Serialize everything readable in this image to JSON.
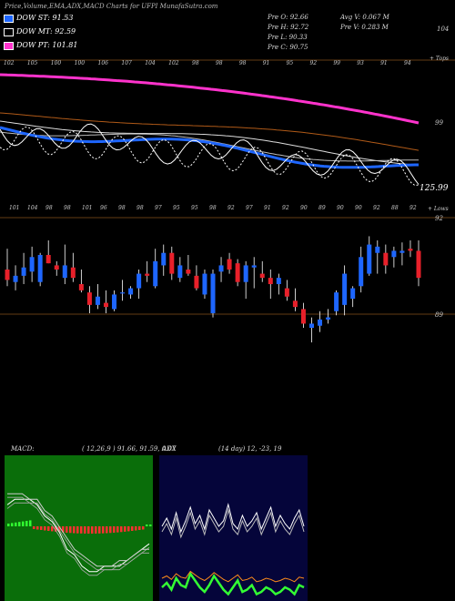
{
  "header": {
    "title": "Price,Volume,EMA,ADX,MACD Charts for UFPI MunafaSutra.com"
  },
  "legend": [
    {
      "label": "DOW ST: 91.53",
      "color": "#1e66ff"
    },
    {
      "label": "DOW MT: 92.59",
      "color": "#ffffff"
    },
    {
      "label": "DOW PT: 101.81",
      "color": "#ff33cc"
    }
  ],
  "ohlc": {
    "open": "Pre   O: 92.66",
    "high": "Pre   H: 92.72",
    "low": "Pre   L: 90.33",
    "close": "Pre   C: 90.75",
    "avg_vol": "Avg V: 0.067 M",
    "pre_vol": "Pre   V: 0.283 M"
  },
  "price_panel": {
    "right_labels": {
      "top": "104",
      "mid": "99",
      "bottom_price": "125.99",
      "tops": "+ Tops",
      "lows": "+ Lows",
      "level_92": "92",
      "level_89": "89"
    },
    "top_numbers": [
      "102",
      "105",
      "100",
      "100",
      "106",
      "107",
      "104",
      "102",
      "98",
      "98",
      "98",
      "91",
      "95",
      "92",
      "99",
      "93",
      "91",
      "94"
    ],
    "low_numbers": [
      "101",
      "104",
      "98",
      "98",
      "101",
      "96",
      "98",
      "98",
      "97",
      "95",
      "95",
      "98",
      "92",
      "97",
      "91",
      "92",
      "90",
      "89",
      "90",
      "90",
      "92",
      "88",
      "92"
    ]
  },
  "macd": {
    "label": "MACD:",
    "params": "( 12,26,9 ) 91.66,  91.59,  0.07"
  },
  "adx": {
    "label": "ADX",
    "params": "(14  day) 12,  -23,  19"
  },
  "colors": {
    "up": "#1e66ff",
    "down": "#e8202a",
    "ema_pt": "#ff33cc",
    "ema_brown": "#b05a18",
    "macd_bg": "#0a6e0a",
    "adx_bg": "#05053a"
  },
  "chart_data": [
    {
      "type": "candlestick",
      "title": "UFPI",
      "ylim": [
        87,
        94
      ],
      "candles": [
        {
          "o": 91.2,
          "h": 92.2,
          "l": 90.4,
          "c": 90.7
        },
        {
          "o": 90.6,
          "h": 91.4,
          "l": 90.2,
          "c": 90.9
        },
        {
          "o": 90.9,
          "h": 92.0,
          "l": 90.5,
          "c": 91.3
        },
        {
          "o": 91.1,
          "h": 92.3,
          "l": 90.6,
          "c": 91.8
        },
        {
          "o": 90.6,
          "h": 92.0,
          "l": 90.4,
          "c": 91.9
        },
        {
          "o": 91.9,
          "h": 92.6,
          "l": 91.5,
          "c": 91.5
        },
        {
          "o": 91.4,
          "h": 91.6,
          "l": 90.9,
          "c": 91.2
        },
        {
          "o": 90.8,
          "h": 92.4,
          "l": 90.5,
          "c": 91.4
        },
        {
          "o": 91.3,
          "h": 92.0,
          "l": 90.6,
          "c": 90.8
        },
        {
          "o": 90.5,
          "h": 91.2,
          "l": 90.1,
          "c": 90.2
        },
        {
          "o": 90.1,
          "h": 90.4,
          "l": 89.1,
          "c": 89.5
        },
        {
          "o": 89.5,
          "h": 90.5,
          "l": 89.3,
          "c": 89.9
        },
        {
          "o": 89.6,
          "h": 90.2,
          "l": 89.1,
          "c": 89.4
        },
        {
          "o": 89.3,
          "h": 90.2,
          "l": 89.2,
          "c": 90.0
        },
        {
          "o": 90.1,
          "h": 90.7,
          "l": 89.7,
          "c": 90.1
        },
        {
          "o": 90.0,
          "h": 90.4,
          "l": 89.8,
          "c": 90.3
        },
        {
          "o": 90.3,
          "h": 91.2,
          "l": 89.8,
          "c": 91.0
        },
        {
          "o": 91.0,
          "h": 91.6,
          "l": 90.6,
          "c": 90.9
        },
        {
          "o": 90.4,
          "h": 92.2,
          "l": 90.3,
          "c": 91.6
        },
        {
          "o": 91.4,
          "h": 92.4,
          "l": 90.9,
          "c": 92.0
        },
        {
          "o": 92.0,
          "h": 92.3,
          "l": 90.7,
          "c": 91.0
        },
        {
          "o": 90.8,
          "h": 91.8,
          "l": 90.6,
          "c": 91.4
        },
        {
          "o": 91.2,
          "h": 91.9,
          "l": 90.9,
          "c": 91.0
        },
        {
          "o": 90.9,
          "h": 91.4,
          "l": 90.2,
          "c": 90.3
        },
        {
          "o": 90.0,
          "h": 91.2,
          "l": 89.8,
          "c": 91.0
        },
        {
          "o": 89.1,
          "h": 91.2,
          "l": 88.9,
          "c": 91.0
        },
        {
          "o": 91.1,
          "h": 91.8,
          "l": 90.6,
          "c": 91.4
        },
        {
          "o": 91.7,
          "h": 92.0,
          "l": 91.0,
          "c": 91.2
        },
        {
          "o": 91.5,
          "h": 91.7,
          "l": 90.4,
          "c": 90.6
        },
        {
          "o": 90.6,
          "h": 91.6,
          "l": 89.8,
          "c": 91.4
        },
        {
          "o": 91.3,
          "h": 91.8,
          "l": 90.3,
          "c": 91.4
        },
        {
          "o": 91.0,
          "h": 91.6,
          "l": 90.6,
          "c": 90.8
        },
        {
          "o": 90.8,
          "h": 91.2,
          "l": 89.8,
          "c": 90.5
        },
        {
          "o": 90.5,
          "h": 91.0,
          "l": 90.0,
          "c": 90.8
        },
        {
          "o": 90.3,
          "h": 90.7,
          "l": 89.7,
          "c": 89.9
        },
        {
          "o": 89.7,
          "h": 90.3,
          "l": 89.2,
          "c": 89.4
        },
        {
          "o": 89.3,
          "h": 89.6,
          "l": 88.4,
          "c": 88.6
        },
        {
          "o": 88.4,
          "h": 88.9,
          "l": 87.7,
          "c": 88.6
        },
        {
          "o": 88.5,
          "h": 89.2,
          "l": 88.2,
          "c": 88.8
        },
        {
          "o": 88.8,
          "h": 89.3,
          "l": 88.6,
          "c": 88.9
        },
        {
          "o": 89.2,
          "h": 90.2,
          "l": 89.0,
          "c": 90.1
        },
        {
          "o": 89.5,
          "h": 91.4,
          "l": 89.0,
          "c": 91.0
        },
        {
          "o": 89.8,
          "h": 90.4,
          "l": 89.4,
          "c": 90.3
        },
        {
          "o": 90.4,
          "h": 92.3,
          "l": 90.1,
          "c": 91.8
        },
        {
          "o": 91.0,
          "h": 92.8,
          "l": 90.9,
          "c": 92.4
        },
        {
          "o": 92.0,
          "h": 92.6,
          "l": 91.0,
          "c": 92.3
        },
        {
          "o": 92.0,
          "h": 92.4,
          "l": 91.0,
          "c": 91.4
        },
        {
          "o": 91.8,
          "h": 92.3,
          "l": 91.3,
          "c": 92.1
        },
        {
          "o": 92.0,
          "h": 92.5,
          "l": 91.4,
          "c": 92.1
        },
        {
          "o": 92.2,
          "h": 92.6,
          "l": 91.8,
          "c": 92.1
        },
        {
          "o": 92.1,
          "h": 92.6,
          "l": 90.4,
          "c": 90.8
        }
      ]
    },
    {
      "type": "line",
      "title": "MACD",
      "series": [
        {
          "name": "MACD",
          "values": [
            92.4,
            92.5,
            92.5,
            92.5,
            92.4,
            92.2,
            92.1,
            91.9,
            91.6,
            91.5,
            91.3,
            91.2,
            91.2,
            91.3,
            91.3,
            91.3,
            91.4,
            91.5,
            91.6,
            91.7
          ]
        },
        {
          "name": "Signal",
          "values": [
            92.6,
            92.6,
            92.6,
            92.5,
            92.5,
            92.3,
            92.2,
            92.0,
            91.8,
            91.6,
            91.5,
            91.4,
            91.3,
            91.3,
            91.3,
            91.4,
            91.4,
            91.5,
            91.6,
            91.6
          ]
        }
      ]
    },
    {
      "type": "line",
      "title": "ADX",
      "series": [
        {
          "name": "ADX",
          "values": [
            19,
            22,
            18,
            24,
            17,
            21,
            26,
            20,
            23,
            18,
            25,
            22,
            19,
            21,
            27,
            20,
            18,
            23,
            19,
            21,
            24,
            18,
            22,
            26,
            19,
            23,
            20,
            18,
            22,
            25,
            19
          ]
        },
        {
          "name": "DI",
          "values": [
            12,
            14,
            11,
            16,
            13,
            12,
            18,
            15,
            12,
            10,
            13,
            17,
            14,
            11,
            9,
            12,
            15,
            10,
            11,
            13,
            9,
            10,
            12,
            11,
            9,
            10,
            12,
            11,
            9,
            13,
            12
          ]
        }
      ]
    }
  ]
}
